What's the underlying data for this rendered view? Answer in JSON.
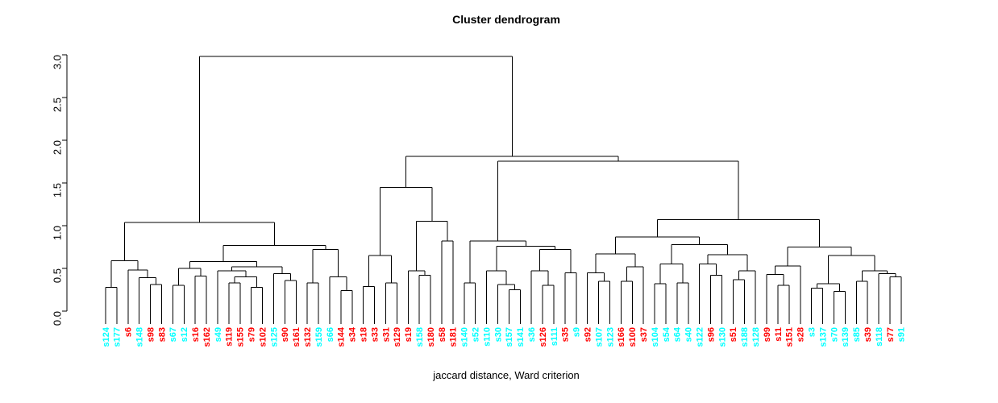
{
  "title": "Cluster dendrogram",
  "xlabel": "jaccard distance, Ward criterion",
  "y_axis": {
    "ticks": [
      "0.0",
      "0.5",
      "1.0",
      "1.5",
      "2.0",
      "2.5",
      "3.0"
    ],
    "tick_step": 0.5,
    "min": 0.0,
    "max": 3.0
  },
  "colors": {
    "line": "#000000",
    "red": "#FF0000",
    "cyan": "#00FFFF"
  },
  "chart_data": {
    "type": "dendrogram",
    "title": "Cluster dendrogram",
    "xlabel": "jaccard distance, Ward criterion",
    "ylim": [
      0.0,
      3.0
    ],
    "leaf_order": [
      "s124",
      "s177",
      "s6",
      "s148",
      "s98",
      "s83",
      "s67",
      "s12",
      "s16",
      "s162",
      "s49",
      "s119",
      "s155",
      "s79",
      "s102",
      "s125",
      "s90",
      "s161",
      "s132",
      "s159",
      "s66",
      "s144",
      "s34",
      "s18",
      "s33",
      "s31",
      "s129",
      "s19",
      "s158",
      "s180",
      "s58",
      "s181",
      "s140",
      "s52",
      "s110",
      "s30",
      "s157",
      "s141",
      "s36",
      "s126",
      "s111",
      "s35",
      "s9",
      "s92",
      "s107",
      "s123",
      "s166",
      "s100",
      "s37",
      "s104",
      "s54",
      "s64",
      "s40",
      "s122",
      "s96",
      "s130",
      "s51",
      "s188",
      "s128",
      "s99",
      "s11",
      "s151",
      "s28",
      "s3",
      "s137",
      "s70",
      "s139",
      "s85",
      "s39",
      "s118",
      "s77",
      "s91"
    ],
    "leaf_colors": {
      "s124": "cyan",
      "s177": "cyan",
      "s6": "red",
      "s148": "cyan",
      "s98": "red",
      "s83": "red",
      "s67": "cyan",
      "s12": "cyan",
      "s16": "red",
      "s162": "red",
      "s49": "cyan",
      "s119": "red",
      "s155": "red",
      "s79": "red",
      "s102": "red",
      "s125": "cyan",
      "s90": "red",
      "s161": "red",
      "s132": "red",
      "s159": "cyan",
      "s66": "cyan",
      "s144": "red",
      "s34": "red",
      "s18": "red",
      "s33": "red",
      "s31": "red",
      "s129": "red",
      "s19": "red",
      "s158": "cyan",
      "s180": "red",
      "s58": "red",
      "s181": "red",
      "s140": "cyan",
      "s52": "cyan",
      "s110": "cyan",
      "s30": "cyan",
      "s157": "cyan",
      "s141": "cyan",
      "s36": "cyan",
      "s126": "red",
      "s111": "cyan",
      "s35": "red",
      "s9": "cyan",
      "s92": "red",
      "s107": "cyan",
      "s123": "cyan",
      "s166": "red",
      "s100": "red",
      "s37": "red",
      "s104": "cyan",
      "s54": "cyan",
      "s64": "cyan",
      "s40": "cyan",
      "s122": "cyan",
      "s96": "red",
      "s130": "cyan",
      "s51": "red",
      "s188": "cyan",
      "s128": "cyan",
      "s99": "red",
      "s11": "red",
      "s151": "red",
      "s28": "red",
      "s3": "cyan",
      "s137": "cyan",
      "s70": "cyan",
      "s139": "cyan",
      "s85": "cyan",
      "s39": "red",
      "s118": "cyan",
      "s77": "red",
      "s91": "cyan"
    },
    "tree": {
      "h": 2.98,
      "c": [
        {
          "h": 1.04,
          "c": [
            {
              "h": 0.59,
              "c": [
                {
                  "h": 0.28,
                  "c": [
                    "s124",
                    "s177"
                  ]
                },
                {
                  "h": 0.48,
                  "c": [
                    "s6",
                    {
                      "h": 0.39,
                      "c": [
                        "s148",
                        {
                          "h": 0.31,
                          "c": [
                            "s98",
                            "s83"
                          ]
                        }
                      ]
                    }
                  ]
                }
              ]
            },
            {
              "h": 0.77,
              "c": [
                {
                  "h": 0.58,
                  "c": [
                    {
                      "h": 0.5,
                      "c": [
                        {
                          "h": 0.3,
                          "c": [
                            "s67",
                            "s12"
                          ]
                        },
                        {
                          "h": 0.41,
                          "c": [
                            "s16",
                            "s162"
                          ]
                        }
                      ]
                    },
                    {
                      "h": 0.52,
                      "c": [
                        {
                          "h": 0.47,
                          "c": [
                            "s49",
                            {
                              "h": 0.4,
                              "c": [
                                {
                                  "h": 0.33,
                                  "c": [
                                    "s119",
                                    "s155"
                                  ]
                                },
                                {
                                  "h": 0.28,
                                  "c": [
                                    "s79",
                                    "s102"
                                  ]
                                }
                              ]
                            }
                          ]
                        },
                        {
                          "h": 0.44,
                          "c": [
                            "s125",
                            {
                              "h": 0.36,
                              "c": [
                                "s90",
                                "s161"
                              ]
                            }
                          ]
                        }
                      ]
                    }
                  ]
                },
                {
                  "h": 0.72,
                  "c": [
                    {
                      "h": 0.33,
                      "c": [
                        "s132",
                        "s159"
                      ]
                    },
                    {
                      "h": 0.4,
                      "c": [
                        "s66",
                        {
                          "h": 0.24,
                          "c": [
                            "s144",
                            "s34"
                          ]
                        }
                      ]
                    }
                  ]
                }
              ]
            }
          ]
        },
        {
          "h": 1.81,
          "c": [
            {
              "h": 1.45,
              "c": [
                {
                  "h": 0.65,
                  "c": [
                    {
                      "h": 0.29,
                      "c": [
                        "s18",
                        "s33"
                      ]
                    },
                    {
                      "h": 0.33,
                      "c": [
                        "s31",
                        "s129"
                      ]
                    }
                  ]
                },
                {
                  "h": 1.05,
                  "c": [
                    {
                      "h": 0.47,
                      "c": [
                        "s19",
                        {
                          "h": 0.42,
                          "c": [
                            "s158",
                            "s180"
                          ]
                        }
                      ]
                    },
                    {
                      "h": 0.82,
                      "c": [
                        "s58",
                        "s181"
                      ]
                    }
                  ]
                }
              ]
            },
            {
              "h": 1.755,
              "c": [
                {
                  "h": 0.82,
                  "c": [
                    {
                      "h": 0.33,
                      "c": [
                        "s140",
                        "s52"
                      ]
                    },
                    {
                      "h": 0.76,
                      "c": [
                        {
                          "h": 0.47,
                          "c": [
                            "s110",
                            {
                              "h": 0.31,
                              "c": [
                                "s30",
                                {
                                  "h": 0.25,
                                  "c": [
                                    "s157",
                                    "s141"
                                  ]
                                }
                              ]
                            }
                          ]
                        },
                        {
                          "h": 0.72,
                          "c": [
                            {
                              "h": 0.47,
                              "c": [
                                "s36",
                                {
                                  "h": 0.3,
                                  "c": [
                                    "s126",
                                    "s111"
                                  ]
                                }
                              ]
                            },
                            {
                              "h": 0.45,
                              "c": [
                                "s35",
                                "s9"
                              ]
                            }
                          ]
                        }
                      ]
                    }
                  ]
                },
                {
                  "h": 1.07,
                  "c": [
                    {
                      "h": 0.87,
                      "c": [
                        {
                          "h": 0.67,
                          "c": [
                            {
                              "h": 0.45,
                              "c": [
                                "s92",
                                {
                                  "h": 0.35,
                                  "c": [
                                    "s107",
                                    "s123"
                                  ]
                                }
                              ]
                            },
                            {
                              "h": 0.52,
                              "c": [
                                {
                                  "h": 0.35,
                                  "c": [
                                    "s166",
                                    "s100"
                                  ]
                                },
                                "s37"
                              ]
                            }
                          ]
                        },
                        {
                          "h": 0.78,
                          "c": [
                            {
                              "h": 0.55,
                              "c": [
                                {
                                  "h": 0.32,
                                  "c": [
                                    "s104",
                                    "s54"
                                  ]
                                },
                                {
                                  "h": 0.33,
                                  "c": [
                                    "s64",
                                    "s40"
                                  ]
                                }
                              ]
                            },
                            {
                              "h": 0.66,
                              "c": [
                                {
                                  "h": 0.55,
                                  "c": [
                                    "s122",
                                    {
                                      "h": 0.42,
                                      "c": [
                                        "s96",
                                        "s130"
                                      ]
                                    }
                                  ]
                                },
                                {
                                  "h": 0.47,
                                  "c": [
                                    {
                                      "h": 0.37,
                                      "c": [
                                        "s51",
                                        "s188"
                                      ]
                                    },
                                    "s128"
                                  ]
                                }
                              ]
                            }
                          ]
                        }
                      ]
                    },
                    {
                      "h": 0.75,
                      "c": [
                        {
                          "h": 0.53,
                          "c": [
                            {
                              "h": 0.43,
                              "c": [
                                "s99",
                                {
                                  "h": 0.3,
                                  "c": [
                                    "s11",
                                    "s151"
                                  ]
                                }
                              ]
                            },
                            "s28"
                          ]
                        },
                        {
                          "h": 0.65,
                          "c": [
                            {
                              "h": 0.32,
                              "c": [
                                {
                                  "h": 0.27,
                                  "c": [
                                    "s3",
                                    "s137"
                                  ]
                                },
                                {
                                  "h": 0.23,
                                  "c": [
                                    "s70",
                                    "s139"
                                  ]
                                }
                              ]
                            },
                            {
                              "h": 0.47,
                              "c": [
                                {
                                  "h": 0.35,
                                  "c": [
                                    "s85",
                                    "s39"
                                  ]
                                },
                                {
                                  "h": 0.44,
                                  "c": [
                                    "s118",
                                    {
                                      "h": 0.4,
                                      "c": [
                                        "s77",
                                        "s91"
                                      ]
                                    }
                                  ]
                                }
                              ]
                            }
                          ]
                        }
                      ]
                    }
                  ]
                }
              ]
            }
          ]
        }
      ]
    }
  }
}
